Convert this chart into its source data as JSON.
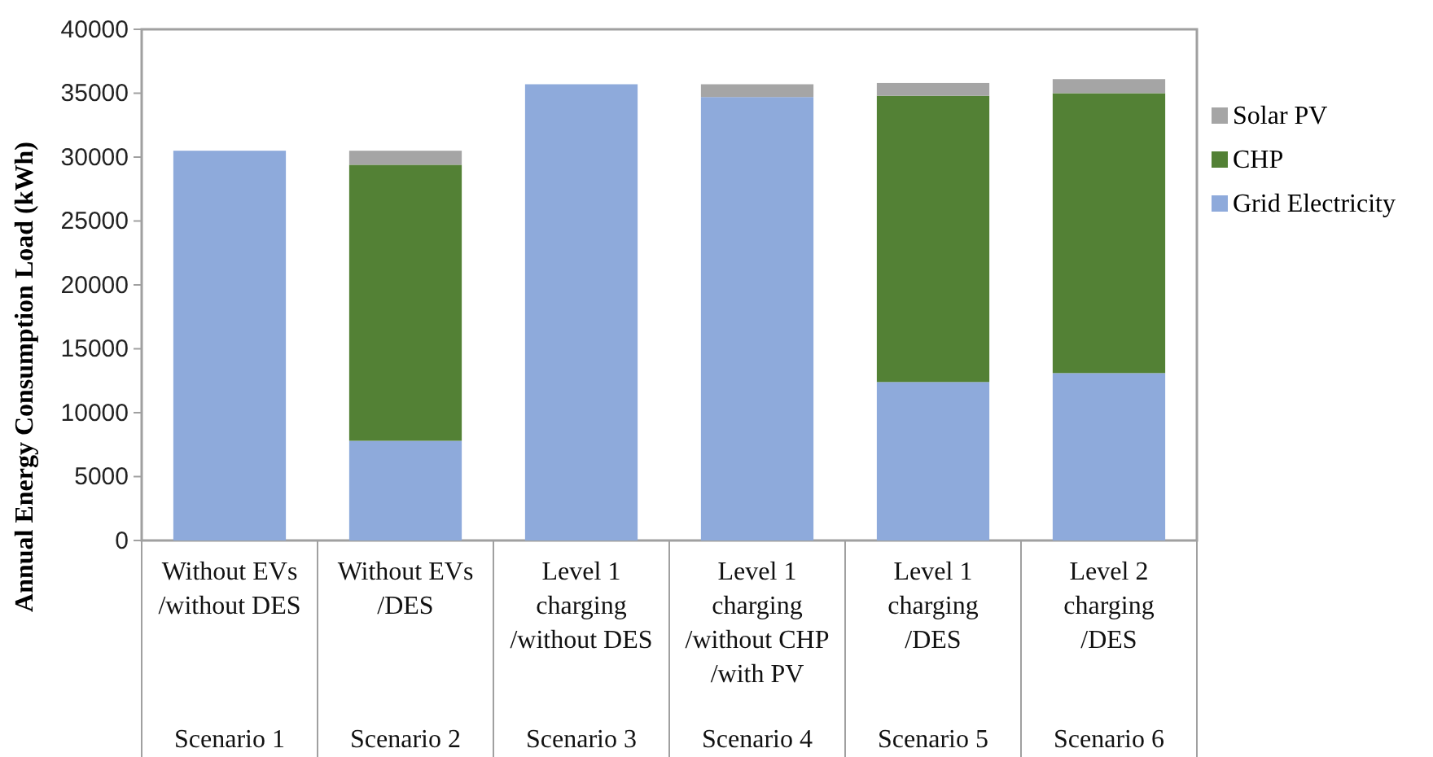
{
  "chart_data": {
    "type": "bar",
    "stacked": true,
    "ylabel": "Annual Energy Consumption Load (kWh)",
    "categories": [
      "Without EVs\n/without DES\n\nScenario 1",
      "Without EVs\n/DES\n\nScenario 2",
      "Level 1\ncharging\n/without DES\n\nScenario 3",
      "Level 1\ncharging\n/without CHP\n/with PV\nScenario 4",
      "Level 1\ncharging\n/DES\n\nScenario 5",
      "Level 2\ncharging\n/DES\n\nScenario 6"
    ],
    "series": [
      {
        "name": "Grid Electricity",
        "color": "#8eaadb",
        "values": [
          30500,
          7800,
          35700,
          34700,
          12400,
          13100
        ]
      },
      {
        "name": "CHP",
        "color": "#538135",
        "values": [
          0,
          21600,
          0,
          0,
          22400,
          21900
        ]
      },
      {
        "name": "Solar PV",
        "color": "#a5a5a5",
        "values": [
          0,
          1100,
          0,
          1000,
          1000,
          1100
        ]
      }
    ],
    "ylim": [
      0,
      40000
    ],
    "yticks": [
      0,
      5000,
      10000,
      15000,
      20000,
      25000,
      30000,
      35000,
      40000
    ],
    "grid": false,
    "legend": "right"
  }
}
